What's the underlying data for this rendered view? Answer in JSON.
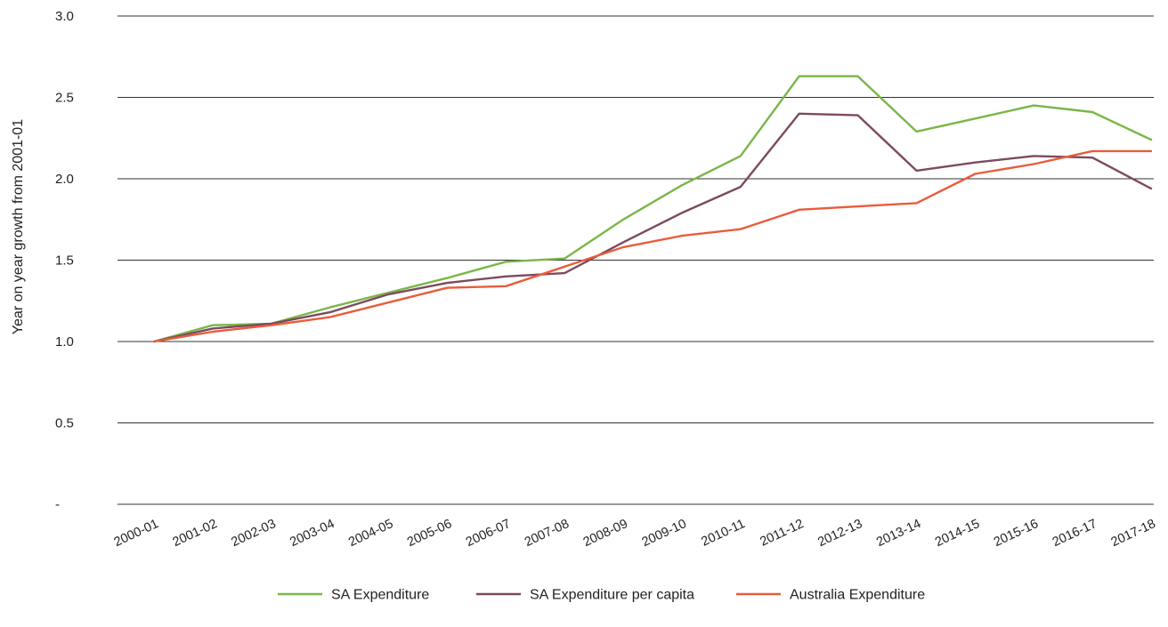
{
  "chart_data": {
    "type": "line",
    "title": "",
    "xlabel": "",
    "ylabel": "Year on year growth from 2001-01",
    "ylim": [
      0,
      3.0
    ],
    "yticks": [
      0,
      0.5,
      1.0,
      1.5,
      2.0,
      2.5,
      3.0
    ],
    "ytick_labels": [
      "-",
      "0.5",
      "1.0",
      "1.5",
      "2.0",
      "2.5",
      "3.0"
    ],
    "grid": "horizontal",
    "legend_position": "bottom",
    "categories": [
      "2000-01",
      "2001-02",
      "2002-03",
      "2003-04",
      "2004-05",
      "2005-06",
      "2006-07",
      "2007-08",
      "2008-09",
      "2009-10",
      "2010-11",
      "2011-12",
      "2012-13",
      "2013-14",
      "2014-15",
      "2015-16",
      "2016-17",
      "2017-18"
    ],
    "series": [
      {
        "name": "SA Expenditure",
        "color": "#7ab648",
        "values": [
          1.0,
          1.1,
          1.11,
          1.21,
          1.3,
          1.39,
          1.49,
          1.51,
          1.75,
          1.96,
          2.14,
          2.63,
          2.63,
          2.29,
          2.37,
          2.45,
          2.41,
          2.24
        ]
      },
      {
        "name": "SA Expenditure per capita",
        "color": "#7d4a5e",
        "values": [
          1.0,
          1.08,
          1.11,
          1.18,
          1.29,
          1.36,
          1.4,
          1.42,
          1.61,
          1.79,
          1.95,
          2.4,
          2.39,
          2.05,
          2.1,
          2.14,
          2.13,
          1.94
        ]
      },
      {
        "name": "Australia Expenditure",
        "color": "#e95c3b",
        "values": [
          1.0,
          1.06,
          1.1,
          1.15,
          1.24,
          1.33,
          1.34,
          1.46,
          1.58,
          1.65,
          1.69,
          1.81,
          1.83,
          1.85,
          2.03,
          2.09,
          2.17,
          2.17
        ]
      }
    ]
  }
}
